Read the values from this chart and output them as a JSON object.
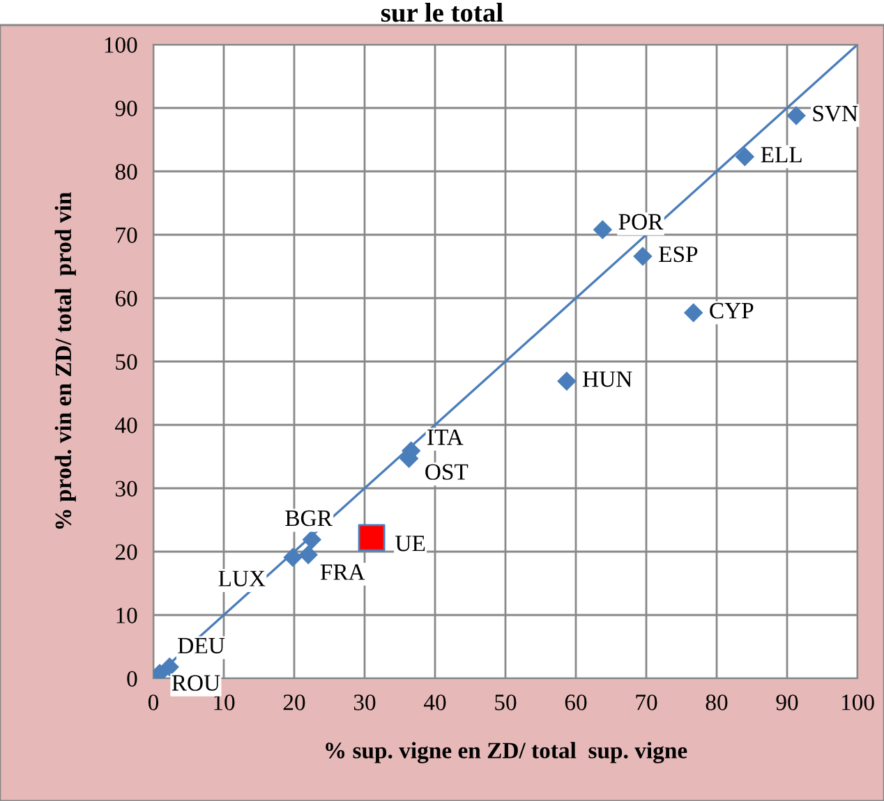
{
  "chart_data": {
    "type": "scatter",
    "title": "sur le total",
    "xlabel": "% sup. vigne en ZD/ total  sup. vigne",
    "ylabel": "% prod. vin en ZD/ total  prod vin",
    "series": [
      {
        "type": "line",
        "color": "#4a7ebb",
        "x": [
          0,
          100
        ],
        "values": [
          0,
          100
        ],
        "marker": "none"
      },
      {
        "color": "#4a7ebb",
        "marker": "diamond",
        "x": [
          91.3,
          84.0,
          63.8,
          69.5,
          76.7,
          58.7,
          36.6,
          36.3,
          22.5,
          22.0,
          19.8,
          2.3,
          0.9
        ],
        "values": [
          88.8,
          82.3,
          70.8,
          66.6,
          57.7,
          46.9,
          35.9,
          34.7,
          21.9,
          19.5,
          19.1,
          1.8,
          0.8
        ]
      },
      {
        "color": "#ff0000",
        "marker": "square",
        "x": [
          31.0
        ],
        "values": [
          22.2
        ]
      }
    ],
    "annotations": [
      {
        "text": "SVN",
        "x": 91.3,
        "y": 88.8
      },
      {
        "text": "ELL",
        "x": 84.0,
        "y": 82.3
      },
      {
        "text": "POR",
        "x": 63.8,
        "y": 70.8
      },
      {
        "text": "ESP",
        "x": 69.5,
        "y": 66.6
      },
      {
        "text": "CYP",
        "x": 76.7,
        "y": 57.7
      },
      {
        "text": "HUN",
        "x": 58.7,
        "y": 46.9
      },
      {
        "text": "ITA",
        "x": 36.6,
        "y": 35.9
      },
      {
        "text": "OST",
        "x": 36.3,
        "y": 34.7
      },
      {
        "text": "BGR",
        "x": 22.5,
        "y": 21.9
      },
      {
        "text": "FRA",
        "x": 22.0,
        "y": 19.5
      },
      {
        "text": "LUX",
        "x": 19.8,
        "y": 19.1
      },
      {
        "text": "DEU",
        "x": 2.3,
        "y": 1.8
      },
      {
        "text": "ROU",
        "x": 0.9,
        "y": 0.8
      },
      {
        "text": "UE",
        "x": 31.0,
        "y": 22.2
      }
    ],
    "xlim": [
      0,
      100
    ],
    "ylim": [
      0,
      100
    ],
    "xticks": [
      0,
      10,
      20,
      30,
      40,
      50,
      60,
      70,
      80,
      90,
      100
    ],
    "yticks": [
      0,
      10,
      20,
      30,
      40,
      50,
      60,
      70,
      80,
      90,
      100
    ],
    "grid": true
  }
}
